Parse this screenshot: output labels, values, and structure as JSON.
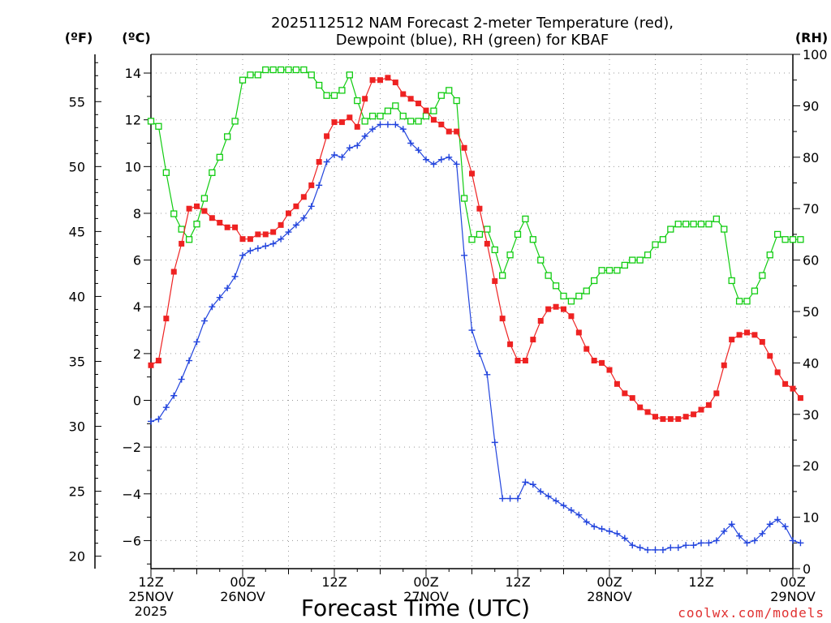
{
  "chart_data": {
    "type": "line",
    "title_line1": "2025112512 NAM Forecast 2-meter Temperature (red),",
    "title_line2": "Dewpoint (blue), RH (green) for KBAF",
    "xlabel": "Forecast Time (UTC)",
    "watermark": "coolwx.com/models",
    "units": {
      "fahrenheit": "(ºF)",
      "celsius": "(ºC)",
      "rh": "(RH)"
    },
    "x_range_hours": [
      0,
      84
    ],
    "y_c_range": [
      -7.2,
      14.8
    ],
    "y_rh_range": [
      0,
      100
    ],
    "colors": {
      "temperature": "#ee2222",
      "dewpoint": "#2244dd",
      "rh": "#11cc11",
      "grid": "#999999",
      "axis": "#000000",
      "watermark": "#e03030"
    },
    "ticks_c": [
      {
        "v": 14,
        "label": "14"
      },
      {
        "v": 12,
        "label": "12"
      },
      {
        "v": 10,
        "label": "10"
      },
      {
        "v": 8,
        "label": "8"
      },
      {
        "v": 6,
        "label": "6"
      },
      {
        "v": 4,
        "label": "4"
      },
      {
        "v": 2,
        "label": "2"
      },
      {
        "v": 0,
        "label": "0"
      },
      {
        "v": -2,
        "label": "−2"
      },
      {
        "v": -4,
        "label": "−4"
      },
      {
        "v": -6,
        "label": "−6"
      }
    ],
    "ticks_f": [
      {
        "v": 55,
        "label": "55"
      },
      {
        "v": 50,
        "label": "50"
      },
      {
        "v": 45,
        "label": "45"
      },
      {
        "v": 40,
        "label": "40"
      },
      {
        "v": 35,
        "label": "35"
      },
      {
        "v": 30,
        "label": "30"
      },
      {
        "v": 25,
        "label": "25"
      },
      {
        "v": 20,
        "label": "20"
      }
    ],
    "ticks_rh": [
      {
        "v": 100,
        "label": "100"
      },
      {
        "v": 90,
        "label": "90"
      },
      {
        "v": 80,
        "label": "80"
      },
      {
        "v": 70,
        "label": "70"
      },
      {
        "v": 60,
        "label": "60"
      },
      {
        "v": 50,
        "label": "50"
      },
      {
        "v": 40,
        "label": "40"
      },
      {
        "v": 30,
        "label": "30"
      },
      {
        "v": 20,
        "label": "20"
      },
      {
        "v": 10,
        "label": "10"
      },
      {
        "v": 0,
        "label": "0"
      }
    ],
    "x_ticks": [
      {
        "h": 0,
        "lines": [
          "12Z",
          "25NOV",
          "2025"
        ]
      },
      {
        "h": 12,
        "lines": [
          "00Z",
          "26NOV"
        ]
      },
      {
        "h": 24,
        "lines": [
          "12Z"
        ]
      },
      {
        "h": 36,
        "lines": [
          "00Z",
          "27NOV"
        ]
      },
      {
        "h": 48,
        "lines": [
          "12Z"
        ]
      },
      {
        "h": 60,
        "lines": [
          "00Z",
          "28NOV"
        ]
      },
      {
        "h": 72,
        "lines": [
          "12Z"
        ]
      },
      {
        "h": 84,
        "lines": [
          "00Z",
          "29NOV"
        ]
      }
    ],
    "temperature_c": [
      1.5,
      1.7,
      3.5,
      5.5,
      6.7,
      8.2,
      8.3,
      8.1,
      7.8,
      7.6,
      7.4,
      7.4,
      6.9,
      6.9,
      7.1,
      7.1,
      7.2,
      7.5,
      8.0,
      8.3,
      8.7,
      9.2,
      10.2,
      11.3,
      11.9,
      11.9,
      12.1,
      11.7,
      12.9,
      13.7,
      13.7,
      13.8,
      13.6,
      13.1,
      12.9,
      12.7,
      12.4,
      12.0,
      11.8,
      11.5,
      11.5,
      10.8,
      9.7,
      8.2,
      6.7,
      5.1,
      3.5,
      2.4,
      1.7,
      1.7,
      2.6,
      3.4,
      3.9,
      4.0,
      3.9,
      3.6,
      2.9,
      2.2,
      1.7,
      1.6,
      1.3,
      0.7,
      0.3,
      0.1,
      -0.3,
      -0.5,
      -0.7,
      -0.8,
      -0.8,
      -0.8,
      -0.7,
      -0.6,
      -0.4,
      -0.2,
      0.3,
      1.5,
      2.6,
      2.8,
      2.9,
      2.8,
      2.5,
      1.9,
      1.2,
      0.7,
      0.5,
      0.1
    ],
    "dewpoint_c": [
      -0.9,
      -0.8,
      -0.3,
      0.2,
      0.9,
      1.7,
      2.5,
      3.4,
      4.0,
      4.4,
      4.8,
      5.3,
      6.2,
      6.4,
      6.5,
      6.6,
      6.7,
      6.9,
      7.2,
      7.5,
      7.8,
      8.3,
      9.2,
      10.2,
      10.5,
      10.4,
      10.8,
      10.9,
      11.3,
      11.6,
      11.8,
      11.8,
      11.8,
      11.6,
      11.0,
      10.7,
      10.3,
      10.1,
      10.3,
      10.4,
      10.1,
      6.2,
      3.0,
      2.0,
      1.1,
      -1.8,
      -4.2,
      -4.2,
      -4.2,
      -3.5,
      -3.6,
      -3.9,
      -4.1,
      -4.3,
      -4.5,
      -4.7,
      -4.9,
      -5.2,
      -5.4,
      -5.5,
      -5.6,
      -5.7,
      -5.9,
      -6.2,
      -6.3,
      -6.4,
      -6.4,
      -6.4,
      -6.3,
      -6.3,
      -6.2,
      -6.2,
      -6.1,
      -6.1,
      -6.0,
      -5.6,
      -5.3,
      -5.8,
      -6.1,
      -6.0,
      -5.7,
      -5.3,
      -5.1,
      -5.4,
      -6.0,
      -6.1
    ],
    "rh_percent": [
      87,
      86,
      77,
      69,
      66,
      64,
      67,
      72,
      77,
      80,
      84,
      87,
      95,
      96,
      96,
      97,
      97,
      97,
      97,
      97,
      97,
      96,
      94,
      92,
      92,
      93,
      96,
      91,
      87,
      88,
      88,
      89,
      90,
      88,
      87,
      87,
      88,
      89,
      92,
      93,
      91,
      72,
      64,
      65,
      66,
      62,
      57,
      61,
      65,
      68,
      64,
      60,
      57,
      55,
      53,
      52,
      53,
      54,
      56,
      58,
      58,
      58,
      59,
      60,
      60,
      61,
      63,
      64,
      66,
      67,
      67,
      67,
      67,
      67,
      68,
      66,
      56,
      52,
      52,
      54,
      57,
      61,
      65,
      64,
      64,
      64
    ]
  }
}
